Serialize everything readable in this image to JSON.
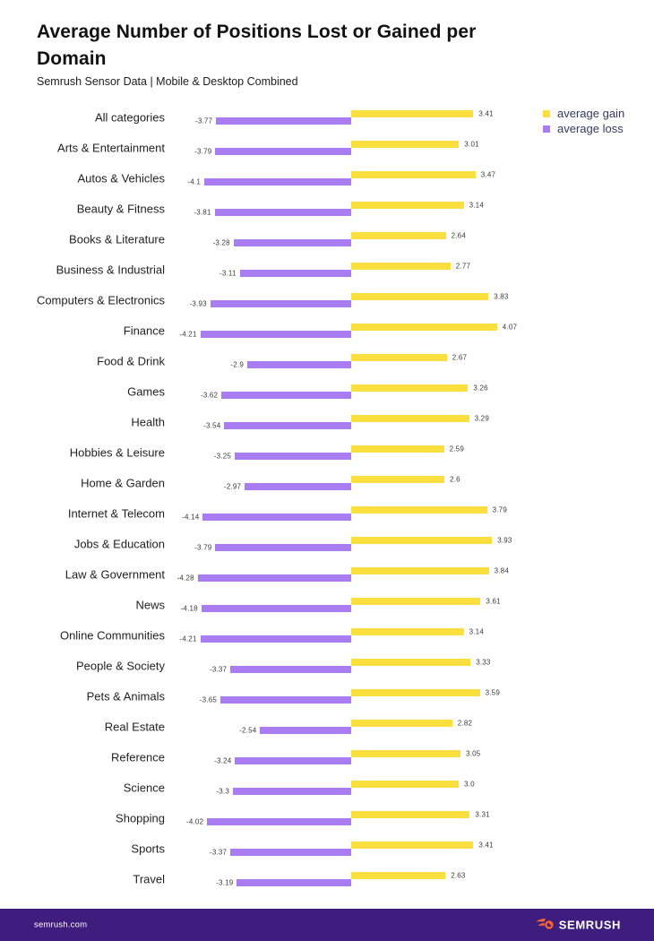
{
  "header": {
    "title": "Average Number of Positions Lost or Gained per Domain",
    "subtitle": "Semrush Sensor Data | Mobile & Desktop Combined"
  },
  "legend": {
    "items": [
      {
        "label": "average gain",
        "color": "#FADF3E"
      },
      {
        "label": "average loss",
        "color": "#A97CF2"
      }
    ]
  },
  "chart_data": {
    "type": "bar",
    "orientation": "horizontal-diverging",
    "title": "Average Number of Positions Lost or Gained per Domain",
    "subtitle": "Semrush Sensor Data | Mobile & Desktop Combined",
    "xlabel": "",
    "ylabel": "",
    "xlim": [
      -5.3,
      5.3
    ],
    "grid": false,
    "legend_position": "top-right",
    "categories": [
      "All categories",
      "Arts & Entertainment",
      "Autos & Vehicles",
      "Beauty & Fitness",
      "Books & Literature",
      "Business & Industrial",
      "Computers & Electronics",
      "Finance",
      "Food & Drink",
      "Games",
      "Health",
      "Hobbies & Leisure",
      "Home & Garden",
      "Internet & Telecom",
      "Jobs & Education",
      "Law & Government",
      "News",
      "Online Communities",
      "People & Society",
      "Pets & Animals",
      "Real Estate",
      "Reference",
      "Science",
      "Shopping",
      "Sports",
      "Travel"
    ],
    "series": [
      {
        "name": "average gain",
        "color": "#FADF3E",
        "values": [
          3.41,
          3.01,
          3.47,
          3.14,
          2.64,
          2.77,
          3.83,
          4.07,
          2.67,
          3.26,
          3.29,
          2.59,
          2.6,
          3.79,
          3.93,
          3.84,
          3.61,
          3.14,
          3.33,
          3.59,
          2.82,
          3.05,
          3.0,
          3.31,
          3.41,
          2.63
        ]
      },
      {
        "name": "average loss",
        "color": "#A97CF2",
        "values": [
          -3.77,
          -3.79,
          -4.1,
          -3.81,
          -3.28,
          -3.11,
          -3.93,
          -4.21,
          -2.9,
          -3.62,
          -3.54,
          -3.25,
          -2.97,
          -4.14,
          -3.79,
          -4.28,
          -4.18,
          -4.21,
          -3.37,
          -3.65,
          -2.54,
          -3.24,
          -3.3,
          -4.02,
          -3.37,
          -3.19
        ]
      }
    ]
  },
  "footer": {
    "site": "semrush.com",
    "brand": "SEMRUSH",
    "background": "#3E1D7E",
    "logo_color": "#FF642D"
  }
}
